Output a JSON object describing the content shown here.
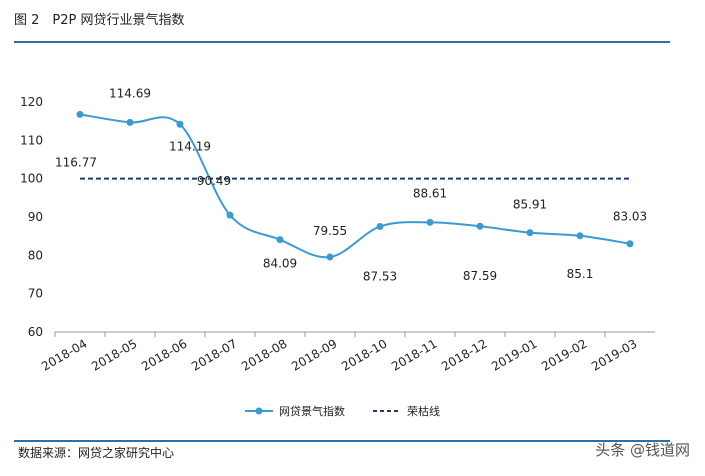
{
  "chart_data": {
    "type": "line",
    "title": "图 2　P2P 网贷行业景气指数",
    "categories": [
      "2018-04",
      "2018-05",
      "2018-06",
      "2018-07",
      "2018-08",
      "2018-09",
      "2018-10",
      "2018-11",
      "2018-12",
      "2019-01",
      "2019-02",
      "2019-03"
    ],
    "series": [
      {
        "name": "网贷景气指数",
        "color": "#3d9ad1",
        "values": [
          116.77,
          114.69,
          114.19,
          90.49,
          84.09,
          79.55,
          87.53,
          88.61,
          87.59,
          85.91,
          85.1,
          83.03
        ]
      },
      {
        "name": "荣枯线",
        "color": "#1f3a6e",
        "values": [
          100,
          100,
          100,
          100,
          100,
          100,
          100,
          100,
          100,
          100,
          100,
          100
        ]
      }
    ],
    "ylim": [
      60,
      120
    ],
    "yticks": [
      60,
      70,
      80,
      90,
      100,
      110,
      120
    ],
    "source": "数据来源：网贷之家研究中心",
    "watermark": "头条 @钱道网"
  }
}
